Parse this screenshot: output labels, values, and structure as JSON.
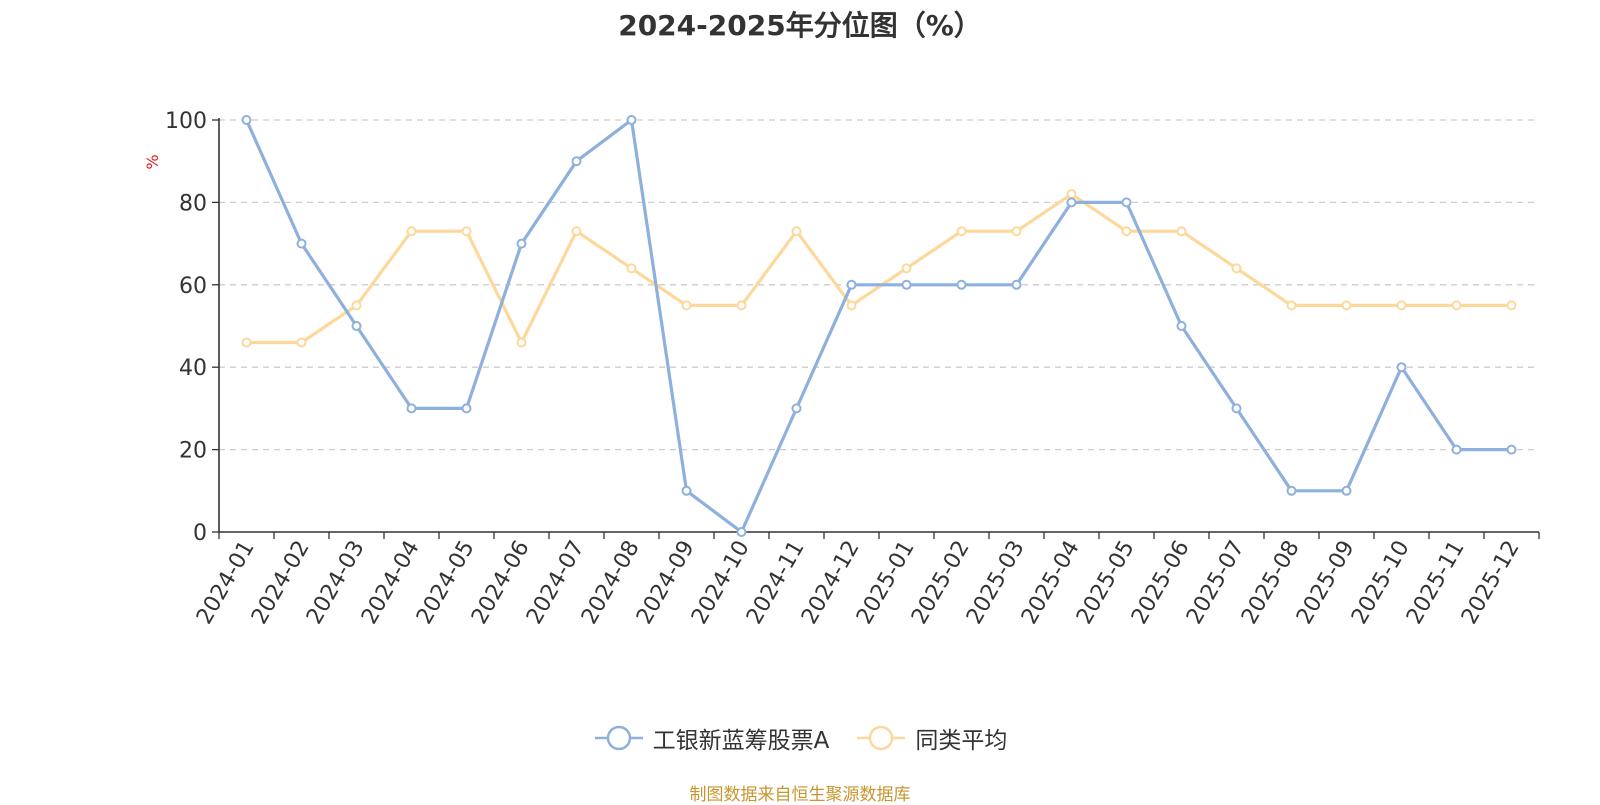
{
  "chart_data": {
    "type": "line",
    "title": "2024-2025年分位图（%）",
    "ylabel": "%",
    "ylim": [
      0,
      100
    ],
    "yticks": [
      0,
      20,
      40,
      60,
      80,
      100
    ],
    "grid": true,
    "legend_position": "bottom-center",
    "categories": [
      "2024-01",
      "2024-02",
      "2024-03",
      "2024-04",
      "2024-05",
      "2024-06",
      "2024-07",
      "2024-08",
      "2024-09",
      "2024-10",
      "2024-11",
      "2024-12",
      "2025-01",
      "2025-02",
      "2025-03",
      "2025-04",
      "2025-05",
      "2025-06",
      "2025-07",
      "2025-08",
      "2025-09",
      "2025-10",
      "2025-11",
      "2025-12"
    ],
    "series": [
      {
        "name": "工银新蓝筹股票A",
        "color": "#8eb0dc",
        "values": [
          100,
          70,
          50,
          30,
          30,
          70,
          90,
          100,
          10,
          0,
          30,
          60,
          60,
          60,
          60,
          80,
          80,
          50,
          30,
          10,
          10,
          40,
          20,
          20
        ]
      },
      {
        "name": "同类平均",
        "color": "#fcd99a",
        "values": [
          46,
          46,
          55,
          73,
          73,
          46,
          73,
          64,
          55,
          55,
          73,
          55,
          64,
          73,
          73,
          82,
          73,
          73,
          64,
          55,
          55,
          55,
          55,
          55
        ]
      }
    ]
  },
  "footer": {
    "source": "制图数据来自恒生聚源数据库"
  },
  "colors": {
    "axis": "#333333",
    "grid": "#cccccc",
    "ylabel": "#e02020",
    "source": "#c8962e"
  }
}
